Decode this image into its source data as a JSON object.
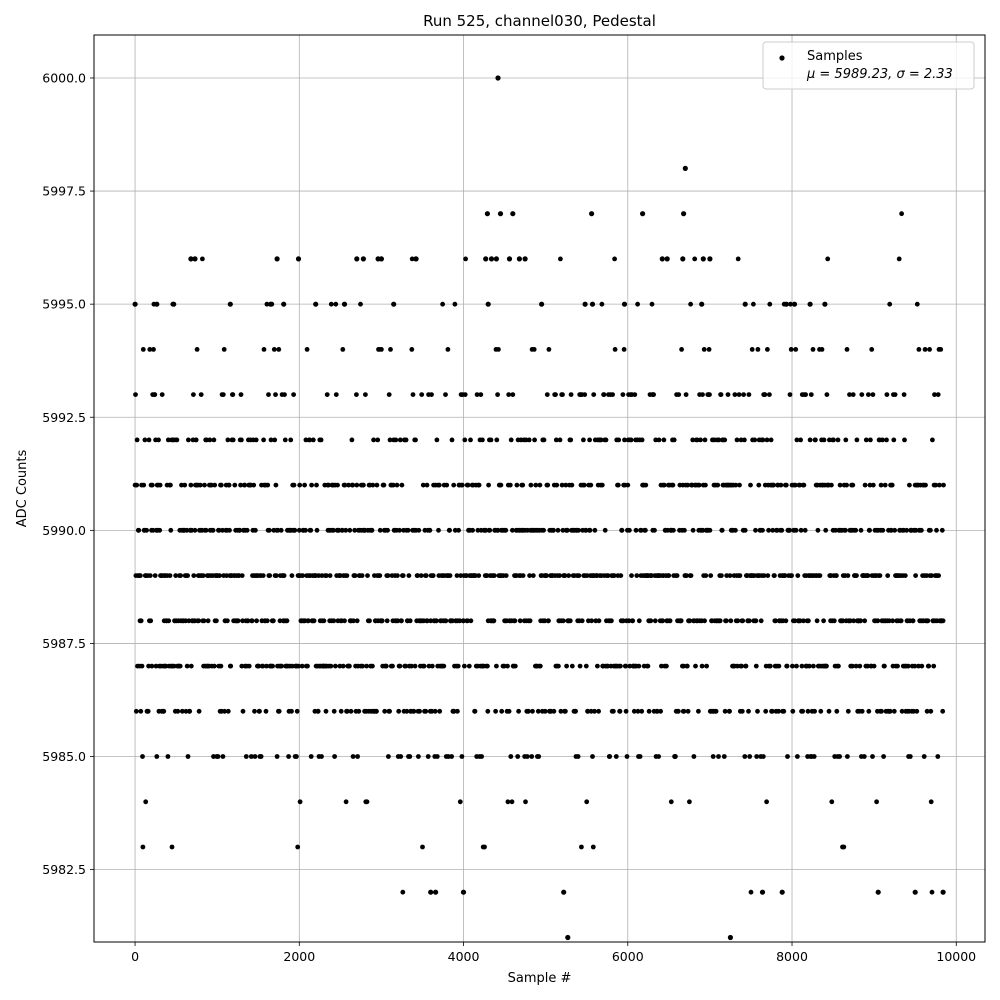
{
  "chart_data": {
    "type": "scatter",
    "title": "Run 525, channel030, Pedestal",
    "xlabel": "Sample #",
    "ylabel": "ADC Counts",
    "xlim": [
      -500,
      10350
    ],
    "ylim": [
      5980.9,
      6000.95
    ],
    "xticks": [
      0,
      2000,
      4000,
      6000,
      8000,
      10000
    ],
    "xtick_labels": [
      "0",
      "2000",
      "4000",
      "6000",
      "8000",
      "10000"
    ],
    "yticks": [
      5982.5,
      5985.0,
      5987.5,
      5990.0,
      5992.5,
      5995.0,
      5997.5,
      6000.0
    ],
    "ytick_labels": [
      "5982.5",
      "5985.0",
      "5987.5",
      "5990.0",
      "5992.5",
      "5995.0",
      "5997.5",
      "6000.0"
    ],
    "grid": true,
    "legend_position": "top-right",
    "series": [
      {
        "name": "Samples",
        "legend_label_line1": "Samples",
        "legend_label_line2": "μ = 5989.23, σ = 2.33",
        "color": "#000000",
        "marker": "circle",
        "n_samples": 9850,
        "level_weights": [
          [
            5981,
            0.0002
          ],
          [
            5982,
            0.001
          ],
          [
            5983,
            0.006
          ],
          [
            5984,
            0.012
          ],
          [
            5985,
            0.05
          ],
          [
            5986,
            0.1
          ],
          [
            5987,
            0.15
          ],
          [
            5988,
            0.18
          ],
          [
            5989,
            0.18
          ],
          [
            5990,
            0.17
          ],
          [
            5991,
            0.12
          ],
          [
            5992,
            0.08
          ],
          [
            5993,
            0.055
          ],
          [
            5994,
            0.025
          ],
          [
            5995,
            0.01
          ],
          [
            5996,
            0.003
          ],
          [
            5997,
            0.001
          ]
        ],
        "points": [
          {
            "x": 0,
            "y": 5995
          },
          {
            "x": 265,
            "y": 5995
          },
          {
            "x": 470,
            "y": 5995
          },
          {
            "x": 1160,
            "y": 5995
          },
          {
            "x": 1650,
            "y": 5995
          },
          {
            "x": 1810,
            "y": 5995
          },
          {
            "x": 2200,
            "y": 5995
          },
          {
            "x": 2550,
            "y": 5995
          },
          {
            "x": 3150,
            "y": 5995
          },
          {
            "x": 4300,
            "y": 5995
          },
          {
            "x": 4950,
            "y": 5995
          },
          {
            "x": 5480,
            "y": 5995
          },
          {
            "x": 5570,
            "y": 5995
          },
          {
            "x": 5960,
            "y": 5995
          },
          {
            "x": 6900,
            "y": 5995
          },
          {
            "x": 7430,
            "y": 5995
          },
          {
            "x": 7930,
            "y": 5995
          },
          {
            "x": 8030,
            "y": 5995
          },
          {
            "x": 8220,
            "y": 5995
          },
          {
            "x": 8400,
            "y": 5995
          },
          {
            "x": 680,
            "y": 5996
          },
          {
            "x": 730,
            "y": 5996
          },
          {
            "x": 1730,
            "y": 5996
          },
          {
            "x": 1990,
            "y": 5996
          },
          {
            "x": 2700,
            "y": 5996
          },
          {
            "x": 2780,
            "y": 5996
          },
          {
            "x": 2960,
            "y": 5996
          },
          {
            "x": 3000,
            "y": 5996
          },
          {
            "x": 3420,
            "y": 5996
          },
          {
            "x": 4270,
            "y": 5996
          },
          {
            "x": 4340,
            "y": 5996
          },
          {
            "x": 4400,
            "y": 5996
          },
          {
            "x": 4560,
            "y": 5996
          },
          {
            "x": 4680,
            "y": 5996
          },
          {
            "x": 4750,
            "y": 5996
          },
          {
            "x": 6420,
            "y": 5996
          },
          {
            "x": 6480,
            "y": 5996
          },
          {
            "x": 6670,
            "y": 5996
          },
          {
            "x": 6920,
            "y": 5996
          },
          {
            "x": 7000,
            "y": 5996
          },
          {
            "x": 4290,
            "y": 5997
          },
          {
            "x": 4450,
            "y": 5997
          },
          {
            "x": 4600,
            "y": 5997
          },
          {
            "x": 5560,
            "y": 5997
          },
          {
            "x": 6180,
            "y": 5997
          },
          {
            "x": 6680,
            "y": 5997
          },
          {
            "x": 6700,
            "y": 5998
          },
          {
            "x": 4420,
            "y": 6000
          },
          {
            "x": 3600,
            "y": 5982
          },
          {
            "x": 3660,
            "y": 5982
          },
          {
            "x": 4000,
            "y": 5982
          },
          {
            "x": 5220,
            "y": 5982
          },
          {
            "x": 7640,
            "y": 5982
          },
          {
            "x": 7880,
            "y": 5982
          },
          {
            "x": 9050,
            "y": 5982
          },
          {
            "x": 9500,
            "y": 5982
          },
          {
            "x": 9840,
            "y": 5982
          },
          {
            "x": 5270,
            "y": 5981
          },
          {
            "x": 7250,
            "y": 5981
          }
        ]
      }
    ]
  }
}
